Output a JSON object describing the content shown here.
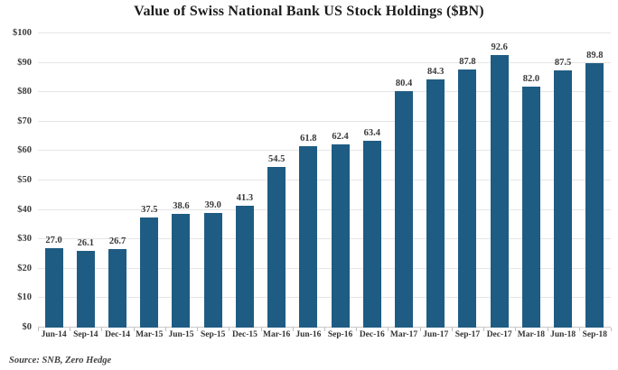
{
  "chart_data": {
    "type": "bar",
    "title": "Value of Swiss National Bank US Stock Holdings ($BN)",
    "categories": [
      "Jun-14",
      "Sep-14",
      "Dec-14",
      "Mar-15",
      "Jun-15",
      "Sep-15",
      "Dec-15",
      "Mar-16",
      "Jun-16",
      "Sep-16",
      "Dec-16",
      "Mar-17",
      "Jun-17",
      "Sep-17",
      "Dec-17",
      "Mar-18",
      "Jun-18",
      "Sep-18"
    ],
    "values": [
      27.0,
      26.1,
      26.7,
      37.5,
      38.6,
      39.0,
      41.3,
      54.5,
      61.8,
      62.4,
      63.4,
      80.4,
      84.3,
      87.8,
      92.6,
      82.0,
      87.5,
      89.8
    ],
    "ylim": [
      0,
      100
    ],
    "y_tick_step": 10,
    "y_tick_prefix": "$",
    "grid": true,
    "legend": "none",
    "bar_color": "#1F5C83",
    "source_note": "Source: SNB, Zero Hedge"
  }
}
